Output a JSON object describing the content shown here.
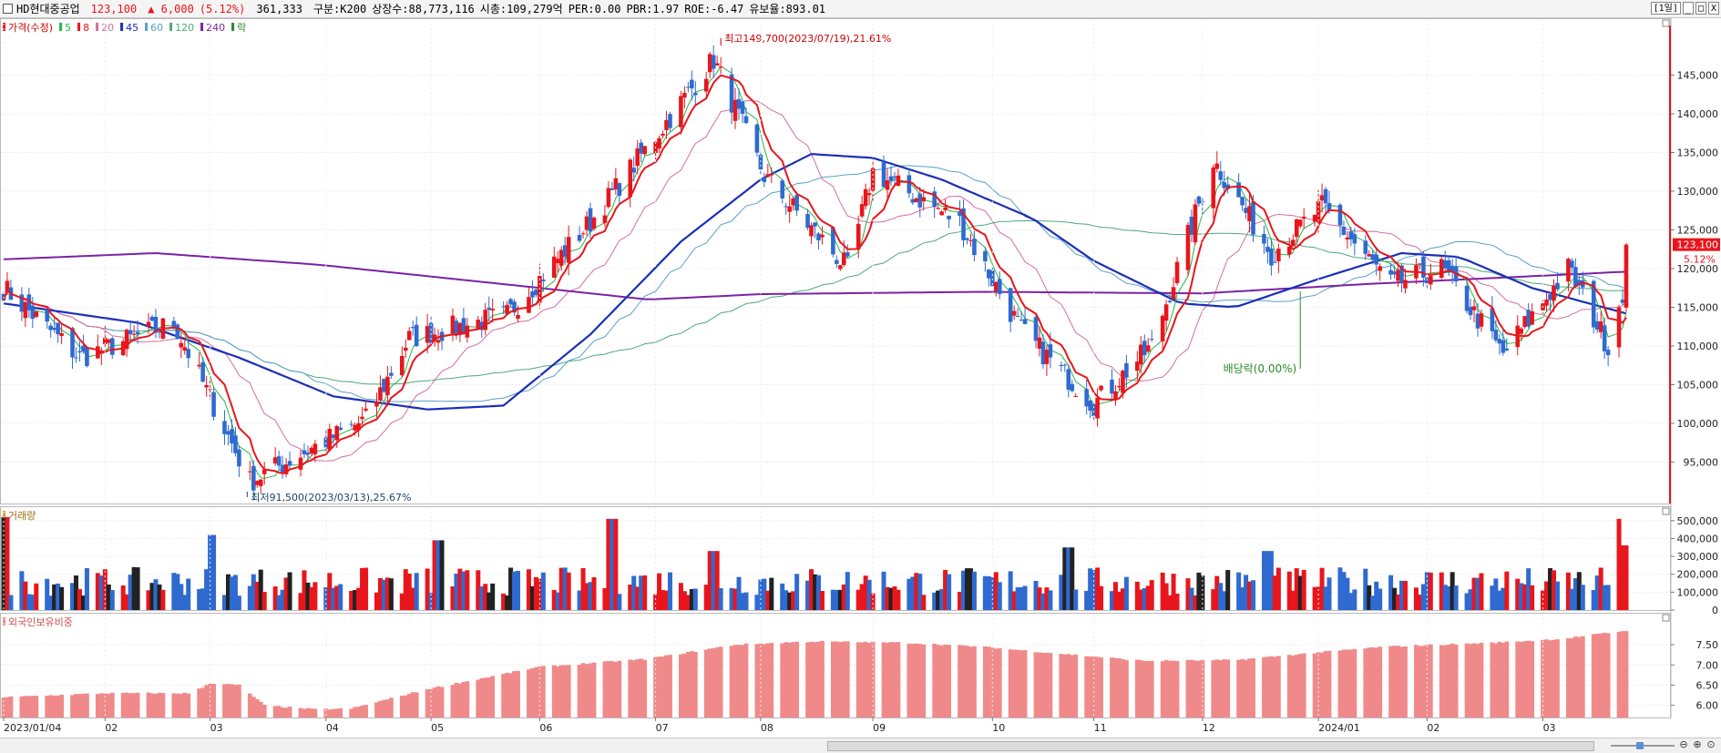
{
  "info": {
    "name": "HD현대중공업",
    "price": "123,100",
    "change": "▲ 6,000",
    "change_pct": "(5.12%)",
    "volume": "361,333",
    "group": "구분:K200",
    "listed": "상장수:88,773,116",
    "market_cap": "시총:109,279억",
    "per": "PER:0.00",
    "pbr": "PBR:1.97",
    "roe": "ROE:-6.47",
    "reserve": "유보율:893.01",
    "period": "[1일]"
  },
  "window_buttons": [
    "_",
    "□",
    "X"
  ],
  "colors": {
    "up": "#e8161c",
    "down": "#2f6ad0",
    "ma5": "#29b54a",
    "ma8": "#e8161c",
    "ma20": "#d36fa0",
    "ma45": "#1b2fb8",
    "ma60": "#5aa0c8",
    "ma120": "#4daa7a",
    "ma240": "#7a22a6",
    "foreign": "#f08a8a"
  },
  "chart_data": {
    "type": "candlestick",
    "price_panel": {
      "legend": [
        {
          "label": "가격(수정)",
          "color": "#e8161c"
        },
        {
          "label": "5",
          "color": "#29b54a"
        },
        {
          "label": "8",
          "color": "#e8161c"
        },
        {
          "label": "20",
          "color": "#d36fa0"
        },
        {
          "label": "45",
          "color": "#1b2fb8"
        },
        {
          "label": "60",
          "color": "#5aa0c8"
        },
        {
          "label": "120",
          "color": "#4daa7a"
        },
        {
          "label": "240",
          "color": "#7a22a6"
        },
        {
          "label": "락",
          "color": "#2a8a2a"
        }
      ],
      "ylim": [
        90000,
        152000
      ],
      "yticks": [
        95000,
        100000,
        105000,
        110000,
        115000,
        120000,
        125000,
        130000,
        135000,
        140000,
        145000
      ],
      "ytick_labels": [
        "95,000",
        "100,000",
        "105,000",
        "110,000",
        "115,000",
        "120,000",
        "125,000",
        "130,000",
        "135,000",
        "140,000",
        "145,000"
      ],
      "last_price_label": "123,100",
      "last_change_label": "5.12%",
      "high_annotation": "최고149,700(2023/07/19),21.61%",
      "low_annotation": "최저91,500(2023/03/13),25.67%",
      "dividend_annotation": "배당락(0.00%)",
      "key_closes": [
        {
          "date": "2023/01/04",
          "close": 117500
        },
        {
          "date": "2023/01/25",
          "close": 108500
        },
        {
          "date": "2023/02/20",
          "close": 113000
        },
        {
          "date": "2023/03/13",
          "close": 92500
        },
        {
          "date": "2023/04/14",
          "close": 100500
        },
        {
          "date": "2023/04/26",
          "close": 111000
        },
        {
          "date": "2023/05/23",
          "close": 114000
        },
        {
          "date": "2023/06/15",
          "close": 126000
        },
        {
          "date": "2023/07/19",
          "close": 147000
        },
        {
          "date": "2023/08/02",
          "close": 132000
        },
        {
          "date": "2023/08/25",
          "close": 120000
        },
        {
          "date": "2023/09/01",
          "close": 132500
        },
        {
          "date": "2023/09/25",
          "close": 126000
        },
        {
          "date": "2023/10/12",
          "close": 112000
        },
        {
          "date": "2023/11/01",
          "close": 102500
        },
        {
          "date": "2023/11/17",
          "close": 110000
        },
        {
          "date": "2023/12/04",
          "close": 134000
        },
        {
          "date": "2023/12/20",
          "close": 122000
        },
        {
          "date": "2024/01/03",
          "close": 128000
        },
        {
          "date": "2024/01/22",
          "close": 118000
        },
        {
          "date": "2024/02/05",
          "close": 120000
        },
        {
          "date": "2024/02/22",
          "close": 109000
        },
        {
          "date": "2024/03/11",
          "close": 120000
        },
        {
          "date": "2024/03/22",
          "close": 110000
        },
        {
          "date": "2024/03/26",
          "close": 117100
        },
        {
          "date": "2024/03/27",
          "close": 123100
        }
      ],
      "ma45_points": [
        {
          "date": "2023/01/04",
          "value": 115500
        },
        {
          "date": "2023/02/10",
          "value": 113000
        },
        {
          "date": "2023/03/10",
          "value": 108500
        },
        {
          "date": "2023/04/05",
          "value": 103500
        },
        {
          "date": "2023/05/01",
          "value": 101800
        },
        {
          "date": "2023/05/22",
          "value": 102300
        },
        {
          "date": "2023/06/15",
          "value": 111500
        },
        {
          "date": "2023/07/10",
          "value": 123500
        },
        {
          "date": "2023/08/01",
          "value": 131500
        },
        {
          "date": "2023/08/15",
          "value": 134800
        },
        {
          "date": "2023/09/01",
          "value": 134300
        },
        {
          "date": "2023/09/20",
          "value": 131500
        },
        {
          "date": "2023/10/15",
          "value": 126500
        },
        {
          "date": "2023/11/01",
          "value": 121000
        },
        {
          "date": "2023/11/25",
          "value": 115500
        },
        {
          "date": "2023/12/10",
          "value": 115000
        },
        {
          "date": "2024/01/01",
          "value": 118500
        },
        {
          "date": "2024/01/25",
          "value": 122000
        },
        {
          "date": "2024/02/10",
          "value": 121500
        },
        {
          "date": "2024/03/01",
          "value": 117500
        },
        {
          "date": "2024/03/27",
          "value": 114200
        }
      ],
      "ma240_points": [
        {
          "date": "2023/01/04",
          "value": 121200
        },
        {
          "date": "2023/02/15",
          "value": 122000
        },
        {
          "date": "2023/04/01",
          "value": 120500
        },
        {
          "date": "2023/06/01",
          "value": 117500
        },
        {
          "date": "2023/07/01",
          "value": 116000
        },
        {
          "date": "2023/08/01",
          "value": 116700
        },
        {
          "date": "2023/10/01",
          "value": 117000
        },
        {
          "date": "2023/12/01",
          "value": 116800
        },
        {
          "date": "2024/01/15",
          "value": 118000
        },
        {
          "date": "2024/03/27",
          "value": 119600
        }
      ]
    },
    "volume_panel": {
      "label": "거래량",
      "ylim": [
        0,
        560000
      ],
      "yticks": [
        0,
        100000,
        200000,
        300000,
        400000,
        500000
      ],
      "ytick_labels": [
        "0",
        "100,000",
        "200,000",
        "300,000",
        "400,000",
        "500,000"
      ],
      "notable_bars": [
        {
          "date": "2023/01/04",
          "value": 520000
        },
        {
          "date": "2023/03/03",
          "value": 420000
        },
        {
          "date": "2023/05/04",
          "value": 390000
        },
        {
          "date": "2023/06/21",
          "value": 510000
        },
        {
          "date": "2023/07/19",
          "value": 330000
        },
        {
          "date": "2023/10/25",
          "value": 350000
        },
        {
          "date": "2023/12/19",
          "value": 330000
        },
        {
          "date": "2024/03/26",
          "value": 510000
        },
        {
          "date": "2024/03/27",
          "value": 361333
        }
      ]
    },
    "foreign_panel": {
      "label": "외국인보유비중",
      "ylim": [
        5.7,
        8.2
      ],
      "yticks": [
        6.0,
        6.5,
        7.0,
        7.5
      ],
      "ytick_labels": [
        "6.00",
        "6.50",
        "7.00",
        "7.50"
      ],
      "points": [
        {
          "date": "2023/01/04",
          "value": 6.2
        },
        {
          "date": "2023/02/01",
          "value": 6.3
        },
        {
          "date": "2023/02/25",
          "value": 6.3
        },
        {
          "date": "2023/03/02",
          "value": 6.55
        },
        {
          "date": "2023/03/10",
          "value": 6.5
        },
        {
          "date": "2023/03/17",
          "value": 6.0
        },
        {
          "date": "2023/03/31",
          "value": 5.9
        },
        {
          "date": "2023/04/10",
          "value": 5.92
        },
        {
          "date": "2023/05/01",
          "value": 6.4
        },
        {
          "date": "2023/06/01",
          "value": 6.95
        },
        {
          "date": "2023/07/01",
          "value": 7.15
        },
        {
          "date": "2023/07/25",
          "value": 7.5
        },
        {
          "date": "2023/08/15",
          "value": 7.58
        },
        {
          "date": "2023/09/10",
          "value": 7.55
        },
        {
          "date": "2023/10/01",
          "value": 7.45
        },
        {
          "date": "2023/10/20",
          "value": 7.3
        },
        {
          "date": "2023/11/15",
          "value": 7.1
        },
        {
          "date": "2023/12/10",
          "value": 7.12
        },
        {
          "date": "2024/01/01",
          "value": 7.3
        },
        {
          "date": "2024/01/20",
          "value": 7.45
        },
        {
          "date": "2024/02/20",
          "value": 7.55
        },
        {
          "date": "2024/03/10",
          "value": 7.65
        },
        {
          "date": "2024/03/27",
          "value": 7.85
        }
      ]
    },
    "x_axis": {
      "start": "2023/01/04",
      "end": "2024/03/27",
      "tick_labels": [
        {
          "label": "2023/01/04",
          "date": "2023/01/04"
        },
        {
          "label": "02",
          "date": "2023/02/01"
        },
        {
          "label": "03",
          "date": "2023/03/02"
        },
        {
          "label": "04",
          "date": "2023/04/03"
        },
        {
          "label": "05",
          "date": "2023/05/02"
        },
        {
          "label": "06",
          "date": "2023/06/01"
        },
        {
          "label": "07",
          "date": "2023/07/03"
        },
        {
          "label": "08",
          "date": "2023/08/01"
        },
        {
          "label": "09",
          "date": "2023/09/01"
        },
        {
          "label": "10",
          "date": "2023/10/04"
        },
        {
          "label": "11",
          "date": "2023/11/01"
        },
        {
          "label": "12",
          "date": "2023/12/01"
        },
        {
          "label": "2024/01",
          "date": "2024/01/02"
        },
        {
          "label": "02",
          "date": "2024/02/01"
        },
        {
          "label": "03",
          "date": "2024/03/04"
        }
      ]
    }
  }
}
